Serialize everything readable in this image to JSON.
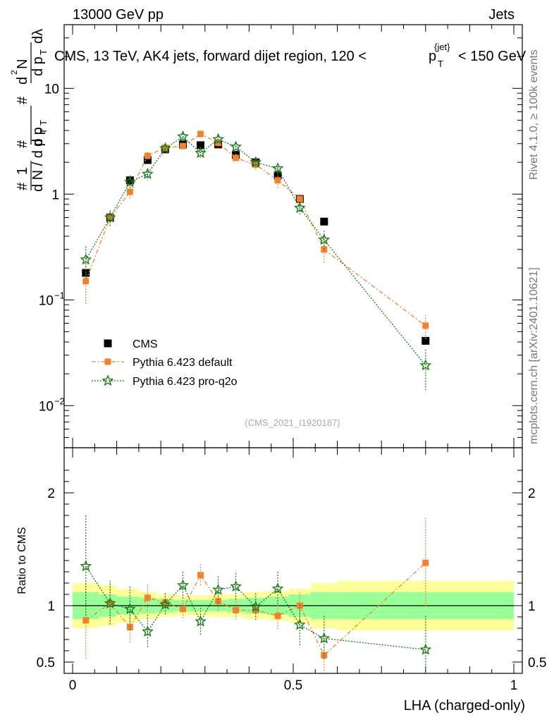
{
  "header": {
    "left": "13000 GeV pp",
    "right": "Jets",
    "title": "CMS, 13 TeV, AK4 jets, forward dijet region, 120 <",
    "title_pt": "p",
    "title_pt_sup": "{jet}",
    "title_pt_sub": "T",
    "title_end": "< 150 GeV"
  },
  "side": {
    "rivet": "Rivet 4.1.0, ≥ 100k events",
    "mcplots": "mcplots.cern.ch [arXiv:2401.10621]"
  },
  "watermark": "(CMS_2021_I1920187)",
  "yaxis": {
    "label_main": "1/N dN/dp_T d²N/dp_T dλ",
    "ticks": [
      {
        "label": "10",
        "sup": "−2",
        "value": 0.01
      },
      {
        "label": "10",
        "sup": "−1",
        "value": 0.1
      },
      {
        "label": "1",
        "sup": "",
        "value": 1
      },
      {
        "label": "10",
        "sup": "",
        "value": 10
      }
    ]
  },
  "ratio": {
    "ylabel": "Ratio to CMS",
    "ticks": [
      {
        "label": "0.5",
        "value": 0.5
      },
      {
        "label": "1",
        "value": 1
      },
      {
        "label": "2",
        "value": 2
      }
    ]
  },
  "xaxis": {
    "label": "LHA (charged-only)",
    "ticks": [
      {
        "label": "0",
        "value": 0
      },
      {
        "label": "0.5",
        "value": 0.5
      },
      {
        "label": "1",
        "value": 1
      }
    ]
  },
  "legend": [
    "CMS",
    "Pythia 6.423 default",
    "Pythia 6.423 pro-q2o"
  ],
  "colors": {
    "data": "#000000",
    "default": "#f4812e",
    "proq2o": "#1a7a1a",
    "band_inner": "#99ff99",
    "band_outer": "#ffff99"
  },
  "chart_data": {
    "type": "scatter",
    "title": "CMS, 13 TeV, AK4 jets, forward dijet region, 120 < pT < 150 GeV",
    "xlabel": "LHA (charged-only)",
    "ylabel": "1/N dN/dpT d2N/dpT dlambda",
    "xlim": [
      0,
      1
    ],
    "ylim": [
      0.004,
      40
    ],
    "yscale": "log",
    "ratio_ylim": [
      0.4,
      2.4
    ],
    "x": [
      0.03,
      0.085,
      0.13,
      0.17,
      0.21,
      0.25,
      0.29,
      0.33,
      0.37,
      0.415,
      0.465,
      0.515,
      0.57,
      0.8
    ],
    "bins": [
      [
        0,
        0.06
      ],
      [
        0.06,
        0.1
      ],
      [
        0.1,
        0.15
      ],
      [
        0.15,
        0.19
      ],
      [
        0.19,
        0.23
      ],
      [
        0.23,
        0.27
      ],
      [
        0.27,
        0.31
      ],
      [
        0.31,
        0.35
      ],
      [
        0.35,
        0.39
      ],
      [
        0.39,
        0.44
      ],
      [
        0.44,
        0.49
      ],
      [
        0.49,
        0.54
      ],
      [
        0.54,
        0.6
      ],
      [
        0.6,
        1.0
      ]
    ],
    "series": [
      {
        "name": "CMS",
        "values": [
          0.18,
          0.6,
          1.35,
          2.1,
          2.65,
          2.95,
          2.9,
          2.95,
          2.35,
          2.0,
          1.5,
          0.9,
          0.55,
          0.041
        ]
      },
      {
        "name": "Pythia 6.423 default",
        "values": [
          0.15,
          0.6,
          1.05,
          2.3,
          2.75,
          2.85,
          3.7,
          3.05,
          2.2,
          1.9,
          1.35,
          0.9,
          0.3,
          0.057
        ],
        "err_lo": [
          0.06,
          0.1,
          0.15,
          0.2,
          0.2,
          0.2,
          0.3,
          0.3,
          0.2,
          0.2,
          0.25,
          0.1,
          0.08,
          0.015
        ],
        "err_hi": [
          0.06,
          0.1,
          0.15,
          0.2,
          0.2,
          0.2,
          0.3,
          0.3,
          0.2,
          0.2,
          0.25,
          0.1,
          0.08,
          0.015
        ],
        "ratio": [
          0.87,
          1.02,
          0.81,
          1.07,
          1.03,
          0.97,
          1.27,
          1.04,
          0.96,
          0.96,
          0.91,
          1.0,
          0.56,
          1.38
        ],
        "ratio_err": [
          0.35,
          0.18,
          0.15,
          0.12,
          0.08,
          0.08,
          0.1,
          0.1,
          0.08,
          0.1,
          0.12,
          0.12,
          0.2,
          0.4
        ]
      },
      {
        "name": "Pythia 6.423 pro-q2o",
        "values": [
          0.24,
          0.6,
          1.3,
          1.55,
          2.7,
          3.5,
          2.45,
          3.3,
          2.8,
          2.0,
          1.75,
          0.74,
          0.37,
          0.024
        ],
        "err_lo": [
          0.08,
          0.1,
          0.2,
          0.2,
          0.2,
          0.25,
          0.25,
          0.25,
          0.25,
          0.2,
          0.2,
          0.1,
          0.08,
          0.01
        ],
        "err_hi": [
          0.08,
          0.1,
          0.2,
          0.2,
          0.2,
          0.25,
          0.25,
          0.25,
          0.25,
          0.2,
          0.2,
          0.1,
          0.08,
          0.01
        ],
        "ratio": [
          1.35,
          1.02,
          0.97,
          0.77,
          1.01,
          1.18,
          0.86,
          1.14,
          1.17,
          0.99,
          1.15,
          0.83,
          0.71,
          0.61
        ],
        "ratio_err": [
          0.45,
          0.2,
          0.2,
          0.15,
          0.1,
          0.12,
          0.12,
          0.12,
          0.12,
          0.12,
          0.15,
          0.18,
          0.2,
          0.3
        ]
      }
    ],
    "cms_band": {
      "inner": [
        0.12,
        0.1,
        0.08,
        0.07,
        0.06,
        0.05,
        0.05,
        0.05,
        0.06,
        0.07,
        0.08,
        0.1,
        0.12,
        0.12
      ],
      "outer": [
        0.2,
        0.18,
        0.15,
        0.12,
        0.1,
        0.09,
        0.09,
        0.1,
        0.1,
        0.12,
        0.13,
        0.15,
        0.2,
        0.22
      ]
    }
  }
}
